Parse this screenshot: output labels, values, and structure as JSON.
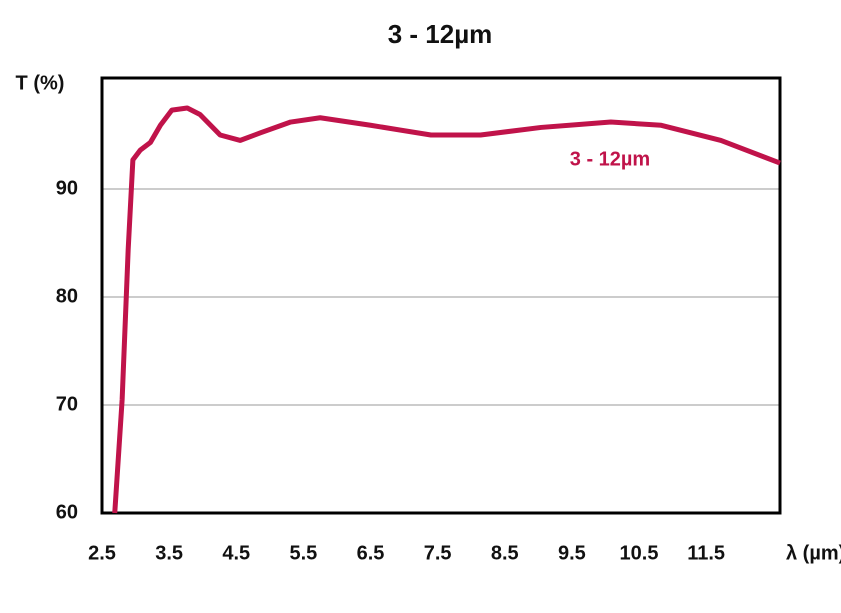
{
  "chart_data": {
    "type": "line",
    "title": "3 - 12µm",
    "y_label": "T (%)",
    "x_label": "λ (µm)",
    "x": [
      2.69,
      2.8,
      2.89,
      2.96,
      3.07,
      3.22,
      3.37,
      3.54,
      3.77,
      3.96,
      4.26,
      4.56,
      4.86,
      5.31,
      5.75,
      6.5,
      7.4,
      8.14,
      9.04,
      10.08,
      10.83,
      11.72,
      12.6
    ],
    "series": [
      {
        "name": "3 - 12µm",
        "color": "#c0134a",
        "values": [
          60,
          70.5,
          84.4,
          92.7,
          93.6,
          94.3,
          95.9,
          97.3,
          97.5,
          96.9,
          95.0,
          94.5,
          95.2,
          96.2,
          96.6,
          95.9,
          95.0,
          95.0,
          95.7,
          96.2,
          95.9,
          94.5,
          92.4
        ]
      }
    ],
    "xlim": [
      2.5,
      12.6
    ],
    "xticks": [
      2.5,
      3.5,
      4.5,
      5.5,
      6.5,
      7.5,
      8.5,
      9.5,
      10.5,
      11.5
    ],
    "ylim": [
      60,
      100
    ],
    "yticks": [
      60,
      70,
      80,
      90
    ],
    "grid": true
  }
}
